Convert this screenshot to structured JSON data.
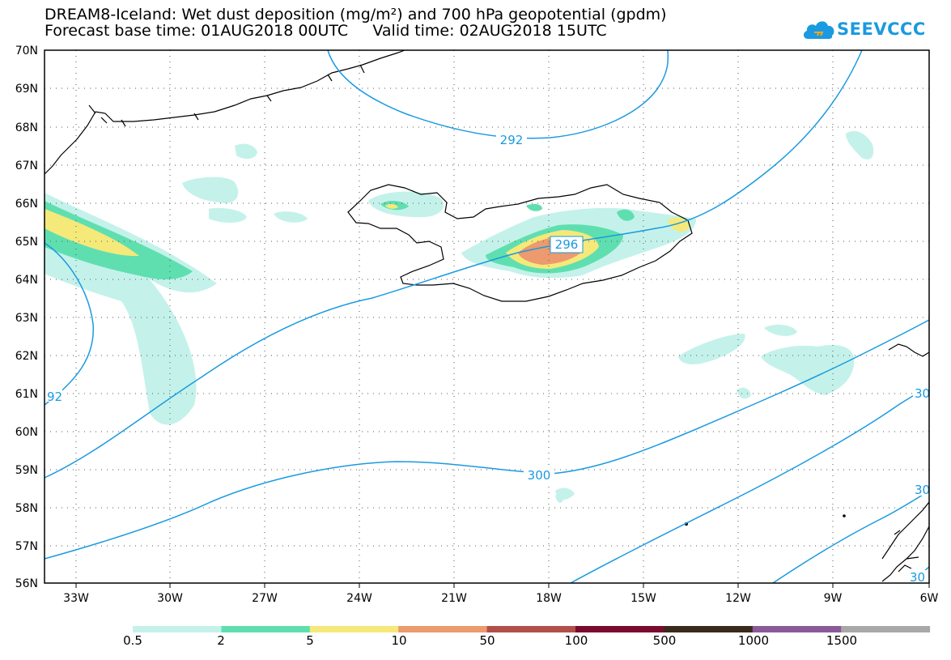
{
  "title": {
    "line1": "DREAM8-Iceland: Wet dust deposition (mg/m²) and 700 hPa geopotential (gpdm)",
    "line2": "Forecast base time: 01AUG2018 00UTC     Valid time: 02AUG2018 15UTC"
  },
  "logo": {
    "text": "SEEVCCC",
    "icon": "cloud-icon",
    "color": "#1a9ae0"
  },
  "axes": {
    "lat_ticks": [
      "70N",
      "69N",
      "68N",
      "67N",
      "66N",
      "65N",
      "64N",
      "63N",
      "62N",
      "61N",
      "60N",
      "59N",
      "58N",
      "57N",
      "56N"
    ],
    "lon_ticks": [
      "33W",
      "30W",
      "27W",
      "24W",
      "21W",
      "18W",
      "15W",
      "12W",
      "9W",
      "6W"
    ]
  },
  "contours": {
    "color": "#1a9ae0",
    "labels": [
      "292",
      "296",
      "300",
      "92",
      "30",
      "30",
      "30"
    ]
  },
  "colorbar": {
    "labels": [
      "0.5",
      "2",
      "5",
      "10",
      "50",
      "100",
      "500",
      "1000",
      "1500"
    ],
    "colors": [
      "#c4f2ea",
      "#5fdfb0",
      "#f5e97a",
      "#ec9a6e",
      "#b24f4a",
      "#7a0a2e",
      "#3a2a1c",
      "#8a5a9a",
      "#a8a8a8"
    ]
  }
}
